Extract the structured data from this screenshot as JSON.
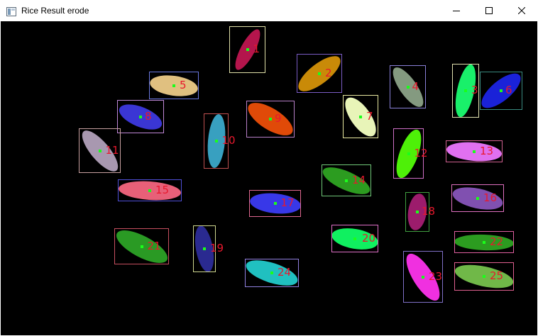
{
  "window": {
    "title": "Rice Result erode",
    "icon": "app-window-icon",
    "controls": [
      "minimize-icon",
      "maximize-icon",
      "close-icon"
    ]
  },
  "grains": [
    {
      "label": "1",
      "color": "#b4154c",
      "box_color": "#e0e0a8"
    },
    {
      "label": "2",
      "color": "#c98a08",
      "box_color": "#7a5cc4"
    },
    {
      "label": "3",
      "color": "#19f06a",
      "box_color": "#e2e2b0"
    },
    {
      "label": "4",
      "color": "#849a80",
      "box_color": "#8a80d8"
    },
    {
      "label": "5",
      "color": "#e0c080",
      "box_color": "#6a78e0"
    },
    {
      "label": "6",
      "color": "#1a22d8",
      "box_color": "#3a8a80"
    },
    {
      "label": "7",
      "color": "#e8f4b8",
      "box_color": "#e8e8a0"
    },
    {
      "label": "8",
      "color": "#3a36d4",
      "box_color": "#c088d8"
    },
    {
      "label": "9",
      "color": "#e04a08",
      "box_color": "#b880c8"
    },
    {
      "label": "10",
      "color": "#38a0c0",
      "box_color": "#c05050"
    },
    {
      "label": "11",
      "color": "#a898b0",
      "box_color": "#c8a0a0"
    },
    {
      "label": "12",
      "color": "#4ef008",
      "box_color": "#d070c8"
    },
    {
      "label": "13",
      "color": "#e070f0",
      "box_color": "#d06090"
    },
    {
      "label": "14",
      "color": "#2c9c20",
      "box_color": "#70c878"
    },
    {
      "label": "15",
      "color": "#e86078",
      "box_color": "#5050d8"
    },
    {
      "label": "16",
      "color": "#8050b0",
      "box_color": "#e070c0"
    },
    {
      "label": "17",
      "color": "#3838e8",
      "box_color": "#e06890"
    },
    {
      "label": "18",
      "color": "#9c1c6c",
      "box_color": "#40a040"
    },
    {
      "label": "19",
      "color": "#2a2a90",
      "box_color": "#d0d890"
    },
    {
      "label": "20",
      "color": "#10f060",
      "box_color": "#e070c8"
    },
    {
      "label": "21",
      "color": "#2a9a24",
      "box_color": "#c85060"
    },
    {
      "label": "22",
      "color": "#2c9c20",
      "box_color": "#e060a0"
    },
    {
      "label": "23",
      "color": "#f030e0",
      "box_color": "#8070c8"
    },
    {
      "label": "24",
      "color": "#20c0c0",
      "box_color": "#9080e0"
    },
    {
      "label": "25",
      "color": "#70b848",
      "box_color": "#e06090"
    }
  ]
}
